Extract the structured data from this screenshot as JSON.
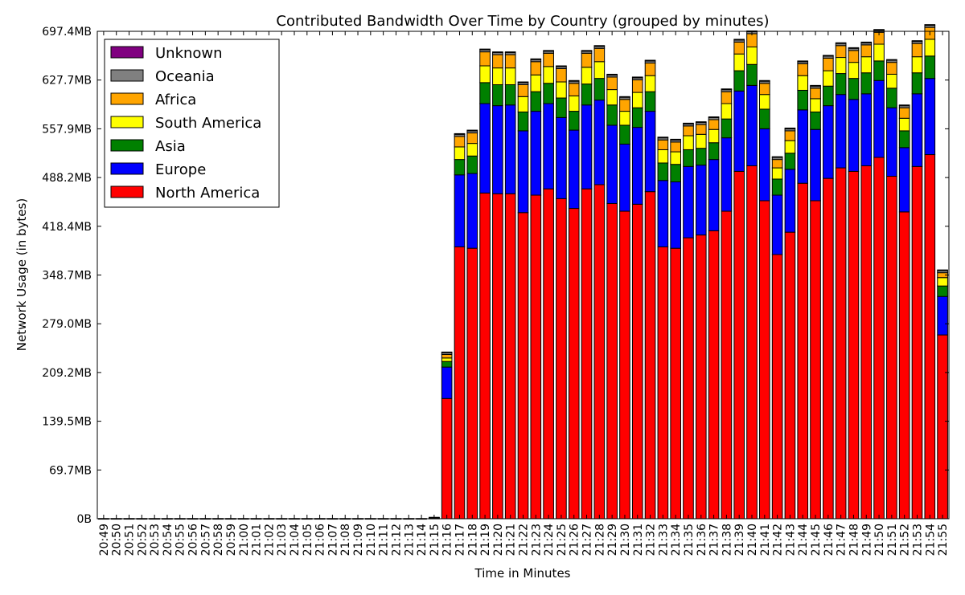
{
  "chart_data": {
    "type": "bar",
    "stacked": true,
    "title": "Contributed Bandwidth Over Time by Country (grouped by minutes)",
    "xlabel": "Time in Minutes",
    "ylabel": "Network Usage (in bytes)",
    "ylim": [
      0,
      697.4
    ],
    "y_unit": "MB",
    "y_tick_labels": [
      "0B",
      "69.7MB",
      "139.5MB",
      "209.2MB",
      "279.0MB",
      "348.7MB",
      "418.4MB",
      "488.2MB",
      "557.9MB",
      "627.7MB",
      "697.4MB"
    ],
    "grid": false,
    "legend_position": "top-left",
    "categories": [
      "20:49",
      "20:50",
      "20:51",
      "20:52",
      "20:53",
      "20:54",
      "20:55",
      "20:56",
      "20:57",
      "20:58",
      "20:59",
      "21:00",
      "21:01",
      "21:02",
      "21:03",
      "21:04",
      "21:05",
      "21:06",
      "21:07",
      "21:08",
      "21:09",
      "21:10",
      "21:11",
      "21:12",
      "21:13",
      "21:14",
      "21:15",
      "21:16",
      "21:17",
      "21:18",
      "21:19",
      "21:20",
      "21:21",
      "21:22",
      "21:23",
      "21:24",
      "21:25",
      "21:26",
      "21:27",
      "21:28",
      "21:29",
      "21:30",
      "21:31",
      "21:32",
      "21:33",
      "21:34",
      "21:35",
      "21:36",
      "21:37",
      "21:38",
      "21:39",
      "21:40",
      "21:41",
      "21:42",
      "21:43",
      "21:44",
      "21:45",
      "21:46",
      "21:47",
      "21:48",
      "21:49",
      "21:50",
      "21:51",
      "21:52",
      "21:53",
      "21:54",
      "21:55"
    ],
    "series": [
      {
        "name": "North America",
        "color": "#ff0000",
        "values": [
          0.3,
          0.3,
          0.3,
          0.3,
          0.3,
          0.3,
          0.3,
          0.3,
          0.3,
          0.3,
          0.3,
          0.3,
          0.3,
          0.3,
          0.3,
          0.3,
          0.3,
          0.3,
          0.3,
          0.3,
          0.3,
          0.3,
          0.3,
          0.3,
          0.3,
          0.3,
          0.8,
          172,
          389,
          387,
          466,
          465,
          465,
          438,
          463,
          472,
          458,
          444,
          472,
          478,
          451,
          440,
          450,
          468,
          389,
          387,
          402,
          406,
          412,
          440,
          497,
          505,
          455,
          378,
          410,
          480,
          455,
          487,
          502,
          497,
          505,
          517,
          490,
          439,
          504,
          521,
          263
        ]
      },
      {
        "name": "Europe",
        "color": "#0000ff",
        "values": [
          0,
          0,
          0,
          0,
          0,
          0,
          0,
          0,
          0,
          0,
          0,
          0,
          0,
          0,
          0,
          0,
          0,
          0,
          0,
          0,
          0,
          0,
          0,
          0,
          0,
          0,
          0.5,
          45,
          103,
          107,
          128,
          126,
          127,
          117,
          120,
          122,
          116,
          112,
          120,
          121,
          112,
          96,
          110,
          115,
          95,
          95,
          102,
          100,
          102,
          105,
          115,
          115,
          103,
          85,
          90,
          105,
          102,
          104,
          105,
          103,
          103,
          110,
          98,
          92,
          104,
          109,
          55
        ]
      },
      {
        "name": "Asia",
        "color": "#008000",
        "values": [
          0,
          0,
          0,
          0,
          0,
          0,
          0,
          0,
          0,
          0,
          0,
          0,
          0,
          0,
          0,
          0,
          0,
          0,
          0,
          0,
          0,
          0,
          0,
          0,
          0,
          0,
          0.3,
          8,
          22,
          25,
          30,
          30,
          29,
          27,
          28,
          29,
          28,
          27,
          30,
          31,
          29,
          27,
          28,
          28,
          25,
          25,
          24,
          24,
          24,
          27,
          29,
          30,
          28,
          23,
          23,
          28,
          25,
          28,
          30,
          30,
          30,
          28,
          28,
          24,
          30,
          32,
          15
        ]
      },
      {
        "name": "South America",
        "color": "#ffff00",
        "values": [
          0,
          0,
          0,
          0,
          0,
          0,
          0,
          0,
          0,
          0,
          0,
          0,
          0,
          0,
          0,
          0,
          0,
          0,
          0,
          0,
          0,
          0,
          0,
          0,
          0,
          0,
          0.2,
          5,
          18,
          18,
          24,
          24,
          24,
          22,
          24,
          24,
          23,
          22,
          24,
          24,
          22,
          20,
          22,
          23,
          19,
          18,
          20,
          20,
          19,
          22,
          24,
          25,
          21,
          16,
          18,
          21,
          19,
          22,
          23,
          23,
          23,
          24,
          20,
          18,
          23,
          24,
          12
        ]
      },
      {
        "name": "Africa",
        "color": "#ffa500",
        "values": [
          0,
          0,
          0,
          0,
          0,
          0,
          0,
          0,
          0,
          0,
          0,
          0,
          0,
          0,
          0,
          0,
          0,
          0,
          0,
          0,
          0,
          0,
          0,
          0,
          0,
          0,
          0.2,
          5,
          15,
          15,
          20,
          19,
          19,
          17,
          19,
          19,
          19,
          18,
          20,
          19,
          18,
          17,
          18,
          18,
          14,
          14,
          14,
          14,
          14,
          17,
          17,
          19,
          16,
          12,
          14,
          17,
          15,
          18,
          17,
          17,
          17,
          17,
          17,
          15,
          19,
          17,
          7
        ]
      },
      {
        "name": "Oceania",
        "color": "#808080",
        "values": [
          0,
          0,
          0,
          0,
          0,
          0,
          0,
          0,
          0,
          0,
          0,
          0,
          0,
          0,
          0,
          0,
          0,
          0,
          0,
          0,
          0,
          0,
          0,
          0,
          0,
          0,
          0,
          3,
          3,
          3,
          3,
          3,
          3,
          3,
          3,
          3,
          3,
          3,
          3,
          3,
          3,
          3,
          3,
          3,
          3,
          3,
          3,
          3,
          3,
          3,
          3,
          3,
          3,
          3,
          3,
          3,
          3,
          3,
          3,
          3,
          3,
          3,
          3,
          3,
          3,
          3,
          3
        ]
      },
      {
        "name": "Unknown",
        "color": "#800080",
        "values": [
          0,
          0,
          0,
          0,
          0,
          0,
          0,
          0,
          0,
          0,
          0,
          0,
          0,
          0,
          0,
          0,
          0,
          0,
          0,
          0,
          0,
          0,
          0,
          0,
          0,
          0,
          0,
          0.5,
          1,
          1,
          1,
          1,
          1,
          1,
          1,
          1,
          1,
          1,
          1,
          1,
          1,
          1,
          1,
          1,
          1,
          1,
          1,
          1,
          1,
          1,
          1,
          1,
          1,
          1,
          1,
          1,
          1,
          1,
          1,
          1,
          1,
          1,
          1,
          1,
          1,
          1,
          1
        ]
      }
    ],
    "legend_order": [
      "Unknown",
      "Oceania",
      "Africa",
      "South America",
      "Asia",
      "Europe",
      "North America"
    ]
  }
}
